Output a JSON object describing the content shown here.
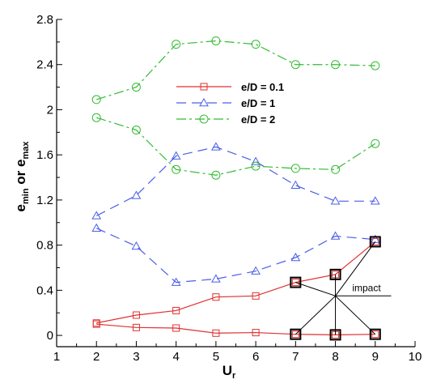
{
  "chart_data": {
    "type": "line",
    "title": "",
    "xlabel": {
      "main": "U",
      "sub": "r"
    },
    "ylabel": {
      "part1": "e",
      "sub1": "min",
      "mid": " or ",
      "part2": "e",
      "sub2": "max"
    },
    "xlim": [
      1,
      10
    ],
    "ylim": [
      -0.1,
      2.8
    ],
    "xticks": [
      1,
      2,
      3,
      4,
      5,
      6,
      7,
      8,
      9,
      10
    ],
    "yticks": [
      0,
      0.4,
      0.8,
      1.2,
      1.6,
      2,
      2.4,
      2.8
    ],
    "ytick_labels": [
      "0",
      "0.4",
      "0.8",
      "1.2",
      "1.6",
      "2",
      "2.4",
      "2.8"
    ],
    "grid": false,
    "legend_position": "top-center",
    "series": [
      {
        "name": "e/D = 0.1",
        "color": "#e03030",
        "dash": "",
        "marker": "square",
        "kind": "max",
        "x": [
          2,
          3,
          4,
          5,
          6,
          7,
          8,
          9
        ],
        "y": [
          0.11,
          0.18,
          0.22,
          0.34,
          0.35,
          0.47,
          0.54,
          0.83
        ]
      },
      {
        "name": "",
        "color": "#e03030",
        "dash": "",
        "marker": "square",
        "kind": "min",
        "x": [
          2,
          3,
          4,
          5,
          6,
          7,
          8,
          9
        ],
        "y": [
          0.1,
          0.07,
          0.065,
          0.02,
          0.025,
          0.01,
          0.005,
          0.01
        ]
      },
      {
        "name": "e/D = 1",
        "color": "#4a5ee8",
        "dash": "12,7",
        "marker": "triangle",
        "kind": "max",
        "x": [
          2,
          3,
          4,
          5,
          6,
          7,
          8,
          9
        ],
        "y": [
          1.06,
          1.24,
          1.59,
          1.67,
          1.54,
          1.33,
          1.19,
          1.19
        ]
      },
      {
        "name": "",
        "color": "#4a5ee8",
        "dash": "12,7",
        "marker": "triangle",
        "kind": "min",
        "x": [
          2,
          3,
          4,
          5,
          6,
          7,
          8,
          9
        ],
        "y": [
          0.95,
          0.79,
          0.47,
          0.5,
          0.57,
          0.69,
          0.88,
          0.85
        ]
      },
      {
        "name": "e/D = 2",
        "color": "#33bb33",
        "dash": "12,4,3,4",
        "marker": "circle",
        "kind": "max",
        "x": [
          2,
          3,
          4,
          5,
          6,
          7,
          8,
          9
        ],
        "y": [
          2.09,
          2.2,
          2.58,
          2.61,
          2.58,
          2.4,
          2.4,
          2.39
        ]
      },
      {
        "name": "",
        "color": "#33bb33",
        "dash": "12,4,3,4",
        "marker": "circle",
        "kind": "min",
        "x": [
          2,
          3,
          4,
          5,
          6,
          7,
          8,
          9
        ],
        "y": [
          1.93,
          1.82,
          1.47,
          1.42,
          1.5,
          1.48,
          1.47,
          1.7
        ]
      }
    ],
    "annotation": {
      "text": "impact",
      "hub": [
        8,
        0.35
      ],
      "targets": [
        [
          7,
          0.47
        ],
        [
          8,
          0.54
        ],
        [
          9,
          0.83
        ],
        [
          7,
          0.01
        ],
        [
          8,
          0.005
        ],
        [
          9,
          0.01
        ]
      ],
      "line_to": [
        9.4,
        0.35
      ]
    }
  }
}
